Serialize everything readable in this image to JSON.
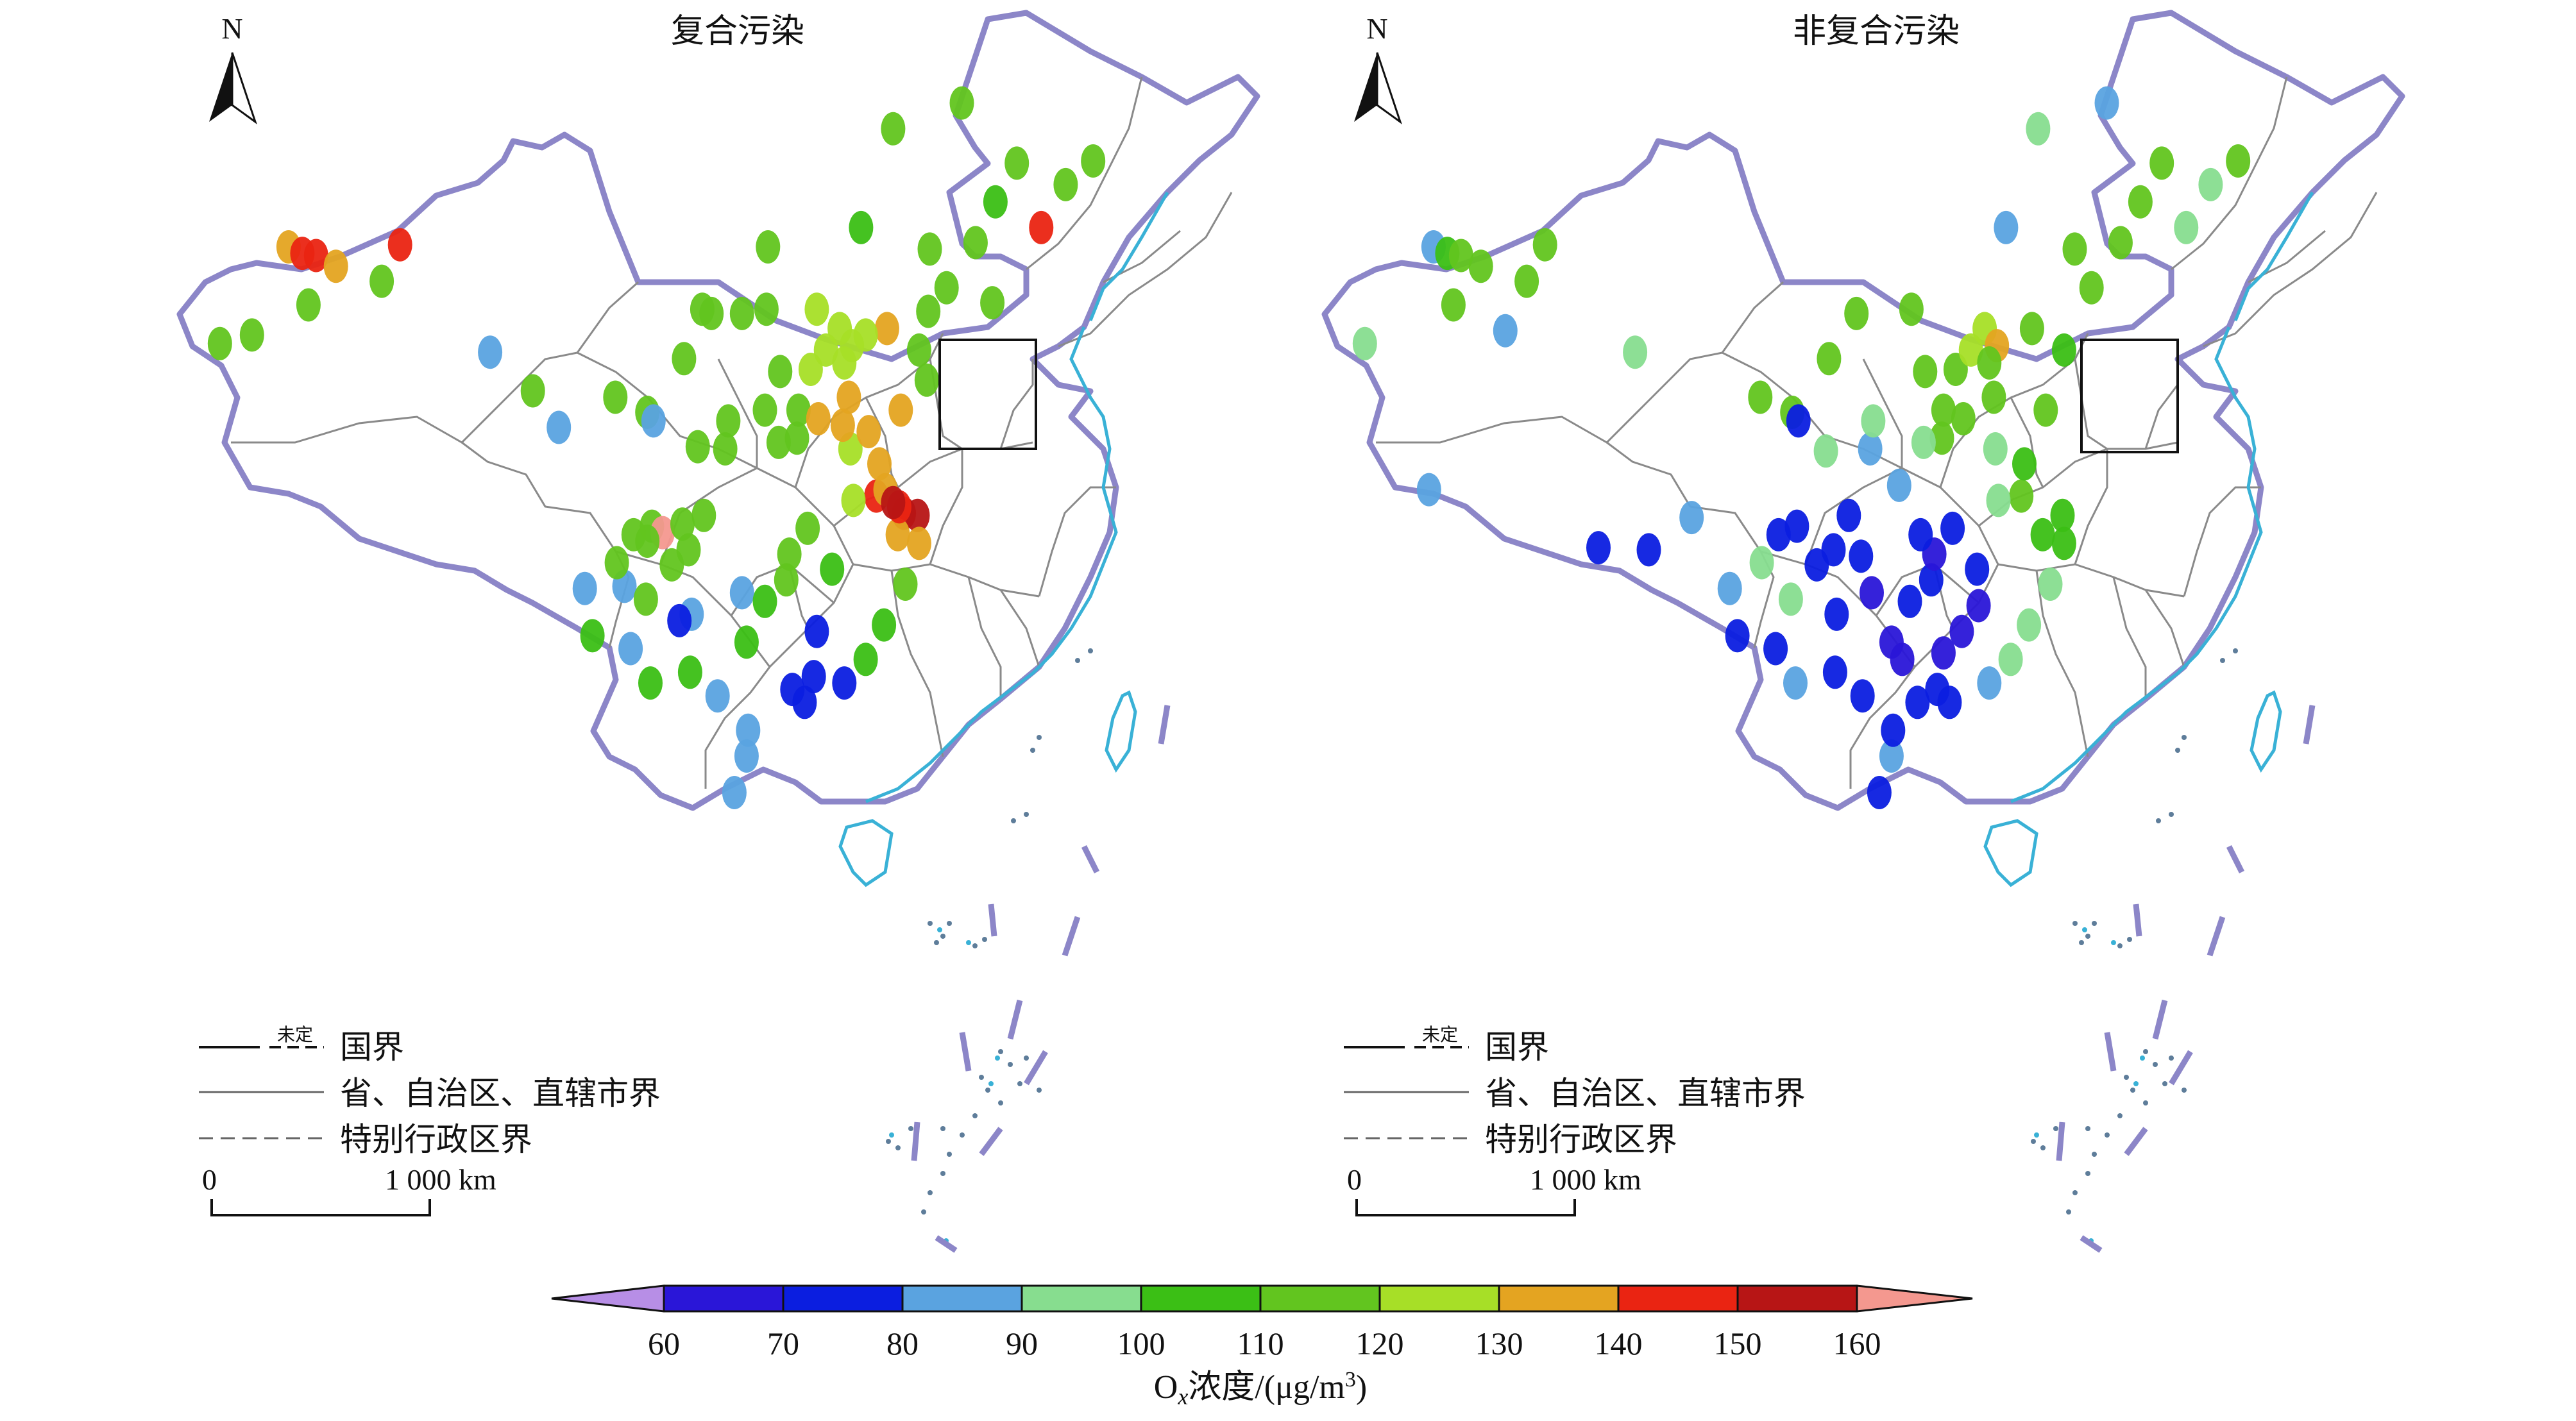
{
  "maps": [
    {
      "title": "复合污染",
      "stations": [
        {
          "lon": 80.3,
          "lat": 43.7,
          "v": 135
        },
        {
          "lon": 81.2,
          "lat": 43.4,
          "v": 145
        },
        {
          "lon": 82.1,
          "lat": 43.3,
          "v": 148
        },
        {
          "lon": 83.4,
          "lat": 42.8,
          "v": 133
        },
        {
          "lon": 81.6,
          "lat": 41.0,
          "v": 115
        },
        {
          "lon": 86.4,
          "lat": 42.1,
          "v": 113
        },
        {
          "lon": 75.8,
          "lat": 39.2,
          "v": 118
        },
        {
          "lon": 77.9,
          "lat": 39.6,
          "v": 115
        },
        {
          "lon": 93.5,
          "lat": 38.8,
          "v": 85
        },
        {
          "lon": 96.3,
          "lat": 37.0,
          "v": 116
        },
        {
          "lon": 98.0,
          "lat": 35.3,
          "v": 85
        },
        {
          "lon": 103.8,
          "lat": 36.0,
          "v": 112
        },
        {
          "lon": 101.7,
          "lat": 36.7,
          "v": 115
        },
        {
          "lon": 106.2,
          "lat": 38.5,
          "v": 113
        },
        {
          "lon": 108.0,
          "lat": 40.6,
          "v": 114
        },
        {
          "lon": 111.6,
          "lat": 40.8,
          "v": 112
        },
        {
          "lon": 116.4,
          "lat": 39.9,
          "v": 125
        },
        {
          "lon": 117.2,
          "lat": 39.1,
          "v": 128
        },
        {
          "lon": 114.5,
          "lat": 38.0,
          "v": 122
        },
        {
          "lon": 112.5,
          "lat": 37.9,
          "v": 118
        },
        {
          "lon": 113.6,
          "lat": 34.8,
          "v": 118
        },
        {
          "lon": 117.0,
          "lat": 36.7,
          "v": 132
        },
        {
          "lon": 120.4,
          "lat": 36.1,
          "v": 135
        },
        {
          "lon": 118.8,
          "lat": 32.1,
          "v": 142
        },
        {
          "lon": 120.6,
          "lat": 31.3,
          "v": 150
        },
        {
          "lon": 121.5,
          "lat": 31.2,
          "v": 155
        },
        {
          "lon": 120.2,
          "lat": 30.3,
          "v": 132
        },
        {
          "lon": 117.3,
          "lat": 31.9,
          "v": 122
        },
        {
          "lon": 114.3,
          "lat": 30.6,
          "v": 115
        },
        {
          "lon": 112.9,
          "lat": 28.2,
          "v": 112
        },
        {
          "lon": 115.9,
          "lat": 28.7,
          "v": 105
        },
        {
          "lon": 119.3,
          "lat": 26.1,
          "v": 105
        },
        {
          "lon": 113.3,
          "lat": 23.1,
          "v": 75
        },
        {
          "lon": 114.1,
          "lat": 22.5,
          "v": 78
        },
        {
          "lon": 110.3,
          "lat": 25.3,
          "v": 105
        },
        {
          "lon": 108.4,
          "lat": 22.8,
          "v": 88
        },
        {
          "lon": 106.7,
          "lat": 26.6,
          "v": 88
        },
        {
          "lon": 104.1,
          "lat": 30.7,
          "v": 115
        },
        {
          "lon": 106.5,
          "lat": 29.6,
          "v": 112
        },
        {
          "lon": 102.7,
          "lat": 25.0,
          "v": 88
        },
        {
          "lon": 100.2,
          "lat": 25.6,
          "v": 105
        },
        {
          "lon": 108.9,
          "lat": 34.3,
          "v": 115
        },
        {
          "lon": 104.8,
          "lat": 30.4,
          "v": 168
        },
        {
          "lon": 103.8,
          "lat": 30.0,
          "v": 112
        },
        {
          "lon": 126.6,
          "lat": 45.8,
          "v": 108
        },
        {
          "lon": 125.3,
          "lat": 43.9,
          "v": 112
        },
        {
          "lon": 123.4,
          "lat": 41.8,
          "v": 112
        },
        {
          "lon": 121.6,
          "lat": 38.9,
          "v": 115
        },
        {
          "lon": 129.6,
          "lat": 44.6,
          "v": 145
        },
        {
          "lon": 128.0,
          "lat": 47.6,
          "v": 112
        },
        {
          "lon": 124.4,
          "lat": 50.4,
          "v": 112
        },
        {
          "lon": 119.9,
          "lat": 49.2,
          "v": 118
        },
        {
          "lon": 117.8,
          "lat": 44.6,
          "v": 105
        },
        {
          "lon": 111.7,
          "lat": 43.7,
          "v": 115
        },
        {
          "lon": 122.3,
          "lat": 43.6,
          "v": 112
        },
        {
          "lon": 119.5,
          "lat": 39.9,
          "v": 130
        },
        {
          "lon": 118.1,
          "lat": 39.6,
          "v": 128
        },
        {
          "lon": 115.5,
          "lat": 38.9,
          "v": 125
        },
        {
          "lon": 114.9,
          "lat": 40.8,
          "v": 122
        },
        {
          "lon": 116.7,
          "lat": 38.3,
          "v": 128
        },
        {
          "lon": 112.4,
          "lat": 34.6,
          "v": 118
        },
        {
          "lon": 111.5,
          "lat": 36.1,
          "v": 115
        },
        {
          "lon": 117.1,
          "lat": 34.3,
          "v": 128
        },
        {
          "lon": 118.3,
          "lat": 35.1,
          "v": 130
        },
        {
          "lon": 119.0,
          "lat": 33.6,
          "v": 132
        },
        {
          "lon": 119.4,
          "lat": 32.4,
          "v": 138
        },
        {
          "lon": 120.3,
          "lat": 31.6,
          "v": 148
        },
        {
          "lon": 119.9,
          "lat": 31.8,
          "v": 155
        },
        {
          "lon": 121.6,
          "lat": 29.9,
          "v": 135
        },
        {
          "lon": 120.7,
          "lat": 28.0,
          "v": 118
        },
        {
          "lon": 118.1,
          "lat": 24.5,
          "v": 105
        },
        {
          "lon": 116.7,
          "lat": 23.4,
          "v": 78
        },
        {
          "lon": 110.4,
          "lat": 21.2,
          "v": 88
        },
        {
          "lon": 110.3,
          "lat": 20.0,
          "v": 88
        },
        {
          "lon": 109.5,
          "lat": 18.3,
          "v": 88
        },
        {
          "lon": 106.6,
          "lat": 23.9,
          "v": 105
        },
        {
          "lon": 104.0,
          "lat": 23.4,
          "v": 105
        },
        {
          "lon": 99.7,
          "lat": 27.8,
          "v": 85
        },
        {
          "lon": 102.3,
          "lat": 27.9,
          "v": 85
        },
        {
          "lon": 103.7,
          "lat": 27.3,
          "v": 112
        },
        {
          "lon": 105.4,
          "lat": 28.9,
          "v": 115
        },
        {
          "lon": 107.5,
          "lat": 31.2,
          "v": 115
        },
        {
          "lon": 110.0,
          "lat": 27.6,
          "v": 88
        },
        {
          "lon": 111.5,
          "lat": 27.2,
          "v": 108
        },
        {
          "lon": 113.1,
          "lat": 29.4,
          "v": 115
        },
        {
          "lon": 114.9,
          "lat": 25.8,
          "v": 75
        },
        {
          "lon": 114.7,
          "lat": 23.7,
          "v": 72
        },
        {
          "lon": 101.8,
          "lat": 29.0,
          "v": 112
        },
        {
          "lon": 113.7,
          "lat": 36.1,
          "v": 118
        },
        {
          "lon": 115.0,
          "lat": 35.7,
          "v": 130
        },
        {
          "lon": 116.6,
          "lat": 35.4,
          "v": 132
        },
        {
          "lon": 122.1,
          "lat": 37.5,
          "v": 118
        },
        {
          "lon": 122.2,
          "lat": 40.7,
          "v": 112
        },
        {
          "lon": 126.4,
          "lat": 41.1,
          "v": 110
        },
        {
          "lon": 131.2,
          "lat": 46.6,
          "v": 112
        },
        {
          "lon": 133.0,
          "lat": 47.7,
          "v": 112
        },
        {
          "lon": 87.6,
          "lat": 43.8,
          "v": 145
        },
        {
          "lon": 110.0,
          "lat": 40.6,
          "v": 112
        },
        {
          "lon": 107.4,
          "lat": 40.8,
          "v": 114
        },
        {
          "lon": 104.2,
          "lat": 35.6,
          "v": 85
        },
        {
          "lon": 102.9,
          "lat": 30.3,
          "v": 112
        },
        {
          "lon": 106.1,
          "lat": 30.8,
          "v": 112
        },
        {
          "lon": 105.9,
          "lat": 26.3,
          "v": 76
        },
        {
          "lon": 109.1,
          "lat": 35.6,
          "v": 110
        },
        {
          "lon": 107.1,
          "lat": 34.4,
          "v": 112
        }
      ]
    },
    {
      "title": "非复合污染",
      "stations": [
        {
          "lon": 80.3,
          "lat": 43.7,
          "v": 88
        },
        {
          "lon": 81.2,
          "lat": 43.4,
          "v": 105
        },
        {
          "lon": 82.1,
          "lat": 43.3,
          "v": 112
        },
        {
          "lon": 83.4,
          "lat": 42.8,
          "v": 118
        },
        {
          "lon": 81.6,
          "lat": 41.0,
          "v": 112
        },
        {
          "lon": 86.4,
          "lat": 42.1,
          "v": 118
        },
        {
          "lon": 75.8,
          "lat": 39.2,
          "v": 95
        },
        {
          "lon": 87.6,
          "lat": 43.8,
          "v": 112
        },
        {
          "lon": 85.0,
          "lat": 39.8,
          "v": 88
        },
        {
          "lon": 93.5,
          "lat": 38.8,
          "v": 95
        },
        {
          "lon": 80.0,
          "lat": 32.4,
          "v": 88
        },
        {
          "lon": 91.1,
          "lat": 29.7,
          "v": 75
        },
        {
          "lon": 94.4,
          "lat": 29.6,
          "v": 78
        },
        {
          "lon": 97.2,
          "lat": 31.1,
          "v": 88
        },
        {
          "lon": 101.7,
          "lat": 36.7,
          "v": 115
        },
        {
          "lon": 103.8,
          "lat": 36.0,
          "v": 112
        },
        {
          "lon": 106.2,
          "lat": 38.5,
          "v": 112
        },
        {
          "lon": 108.0,
          "lat": 40.6,
          "v": 115
        },
        {
          "lon": 111.6,
          "lat": 40.8,
          "v": 112
        },
        {
          "lon": 116.4,
          "lat": 39.9,
          "v": 122
        },
        {
          "lon": 117.2,
          "lat": 39.1,
          "v": 135
        },
        {
          "lon": 114.5,
          "lat": 38.0,
          "v": 118
        },
        {
          "lon": 112.5,
          "lat": 37.9,
          "v": 115
        },
        {
          "lon": 108.9,
          "lat": 34.3,
          "v": 88
        },
        {
          "lon": 104.1,
          "lat": 30.7,
          "v": 72
        },
        {
          "lon": 106.5,
          "lat": 29.6,
          "v": 75
        },
        {
          "lon": 102.7,
          "lat": 25.0,
          "v": 78
        },
        {
          "lon": 100.2,
          "lat": 25.6,
          "v": 75
        },
        {
          "lon": 106.7,
          "lat": 26.6,
          "v": 72
        },
        {
          "lon": 108.4,
          "lat": 22.8,
          "v": 75
        },
        {
          "lon": 110.3,
          "lat": 25.3,
          "v": 65
        },
        {
          "lon": 113.3,
          "lat": 23.1,
          "v": 72
        },
        {
          "lon": 114.1,
          "lat": 22.5,
          "v": 75
        },
        {
          "lon": 112.9,
          "lat": 28.2,
          "v": 72
        },
        {
          "lon": 114.3,
          "lat": 30.6,
          "v": 78
        },
        {
          "lon": 115.9,
          "lat": 28.7,
          "v": 76
        },
        {
          "lon": 119.3,
          "lat": 26.1,
          "v": 95
        },
        {
          "lon": 120.2,
          "lat": 30.3,
          "v": 105
        },
        {
          "lon": 121.5,
          "lat": 31.2,
          "v": 105
        },
        {
          "lon": 118.8,
          "lat": 32.1,
          "v": 110
        },
        {
          "lon": 117.0,
          "lat": 36.7,
          "v": 115
        },
        {
          "lon": 120.4,
          "lat": 36.1,
          "v": 112
        },
        {
          "lon": 117.3,
          "lat": 31.9,
          "v": 95
        },
        {
          "lon": 113.6,
          "lat": 34.8,
          "v": 112
        },
        {
          "lon": 126.6,
          "lat": 45.8,
          "v": 112
        },
        {
          "lon": 125.3,
          "lat": 43.9,
          "v": 112
        },
        {
          "lon": 123.4,
          "lat": 41.8,
          "v": 112
        },
        {
          "lon": 121.6,
          "lat": 38.9,
          "v": 108
        },
        {
          "lon": 129.6,
          "lat": 44.6,
          "v": 95
        },
        {
          "lon": 128.0,
          "lat": 47.6,
          "v": 112
        },
        {
          "lon": 124.4,
          "lat": 50.4,
          "v": 85
        },
        {
          "lon": 119.9,
          "lat": 49.2,
          "v": 92
        },
        {
          "lon": 117.8,
          "lat": 44.6,
          "v": 88
        },
        {
          "lon": 122.3,
          "lat": 43.6,
          "v": 112
        },
        {
          "lon": 131.2,
          "lat": 46.6,
          "v": 95
        },
        {
          "lon": 133.0,
          "lat": 47.7,
          "v": 112
        },
        {
          "lon": 109.5,
          "lat": 18.3,
          "v": 75
        },
        {
          "lon": 110.3,
          "lat": 20.0,
          "v": 88
        },
        {
          "lon": 110.4,
          "lat": 21.2,
          "v": 72
        },
        {
          "lon": 111.5,
          "lat": 27.2,
          "v": 75
        },
        {
          "lon": 109.0,
          "lat": 27.6,
          "v": 65
        },
        {
          "lon": 107.5,
          "lat": 31.2,
          "v": 78
        },
        {
          "lon": 105.4,
          "lat": 28.9,
          "v": 72
        },
        {
          "lon": 103.7,
          "lat": 27.3,
          "v": 95
        },
        {
          "lon": 104.0,
          "lat": 23.4,
          "v": 88
        },
        {
          "lon": 106.6,
          "lat": 23.9,
          "v": 78
        },
        {
          "lon": 114.9,
          "lat": 25.8,
          "v": 68
        },
        {
          "lon": 116.7,
          "lat": 23.4,
          "v": 85
        },
        {
          "lon": 118.1,
          "lat": 24.5,
          "v": 95
        },
        {
          "lon": 120.7,
          "lat": 28.0,
          "v": 92
        },
        {
          "lon": 113.1,
          "lat": 29.4,
          "v": 65
        },
        {
          "lon": 112.2,
          "lat": 30.3,
          "v": 72
        },
        {
          "lon": 110.8,
          "lat": 32.6,
          "v": 88
        },
        {
          "lon": 119.5,
          "lat": 39.9,
          "v": 112
        },
        {
          "lon": 115.5,
          "lat": 38.9,
          "v": 128
        },
        {
          "lon": 116.7,
          "lat": 38.3,
          "v": 115
        },
        {
          "lon": 112.4,
          "lat": 34.6,
          "v": 95
        },
        {
          "lon": 117.1,
          "lat": 34.3,
          "v": 95
        },
        {
          "lon": 119.0,
          "lat": 33.6,
          "v": 105
        },
        {
          "lon": 121.6,
          "lat": 29.9,
          "v": 100
        },
        {
          "lon": 102.9,
          "lat": 30.3,
          "v": 75
        },
        {
          "lon": 101.8,
          "lat": 29.0,
          "v": 92
        },
        {
          "lon": 99.7,
          "lat": 27.8,
          "v": 88
        },
        {
          "lon": 109.1,
          "lat": 35.6,
          "v": 95
        },
        {
          "lon": 115.0,
          "lat": 35.7,
          "v": 112
        },
        {
          "lon": 113.7,
          "lat": 36.1,
          "v": 115
        },
        {
          "lon": 104.2,
          "lat": 35.6,
          "v": 78
        },
        {
          "lon": 111.0,
          "lat": 24.5,
          "v": 65
        },
        {
          "lon": 112.0,
          "lat": 22.5,
          "v": 72
        },
        {
          "lon": 113.7,
          "lat": 24.8,
          "v": 65
        },
        {
          "lon": 108.3,
          "lat": 29.3,
          "v": 76
        },
        {
          "lon": 116.0,
          "lat": 27.0,
          "v": 65
        },
        {
          "lon": 106.0,
          "lat": 34.2,
          "v": 92
        }
      ]
    }
  ],
  "box_label": "",
  "north_label": "N",
  "legend": {
    "undetermined": "未定",
    "national": "国界",
    "provincial": "省、自治区、直辖市界",
    "sar": "特别行政区界",
    "scale_zero": "0",
    "scale_km": "1 000 km"
  },
  "colorbar": {
    "ticks": [
      "60",
      "70",
      "80",
      "90",
      "100",
      "110",
      "120",
      "130",
      "140",
      "150",
      "160"
    ],
    "below_color": "#b78ee6",
    "above_color": "#f4988f",
    "colors": [
      "#2a16d8",
      "#0b1ee0",
      "#5aa3e0",
      "#87dd8f",
      "#3bbf15",
      "#62c51f",
      "#a7df27",
      "#e4a421",
      "#ea2412",
      "#b71515"
    ],
    "label_prefix": "O",
    "label_sub": "x",
    "label_rest": "浓度/(μg/m",
    "label_sup": "3",
    "label_end": ")"
  }
}
